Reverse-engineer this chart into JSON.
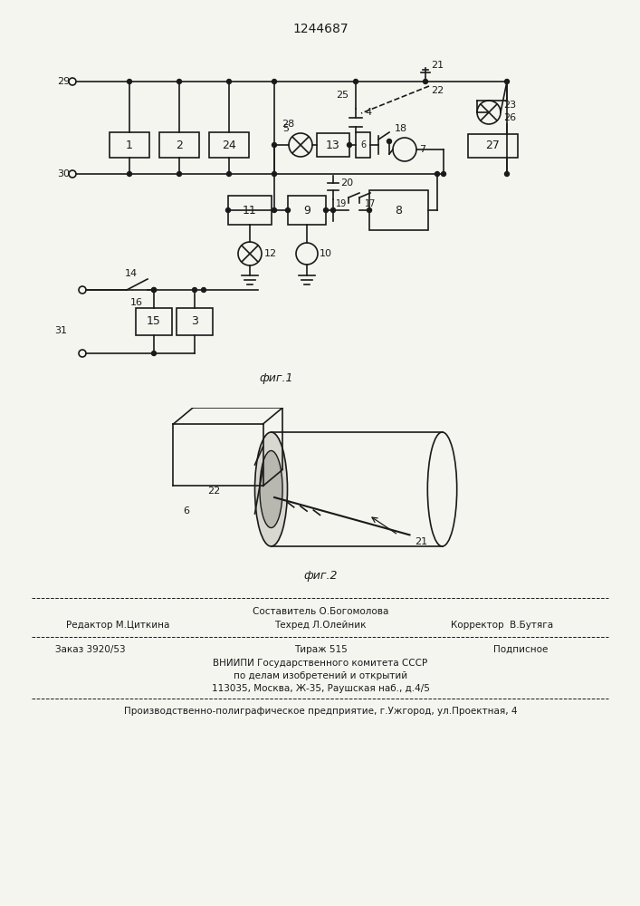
{
  "title": "1244687",
  "fig1_label": "фиг.1",
  "fig2_label": "фиг.2",
  "background_color": "#f5f5f0",
  "line_color": "#1a1a1a",
  "fig_width": 7.07,
  "fig_height": 10.0,
  "footer": {
    "line1_center": "Составитель О.Богомолова",
    "line2_left": "Редактор М.Циткина",
    "line2_center": "Техред Л.Олейник",
    "line2_right": "Корректор  В.Бутяга",
    "line3_left": "Заказ 3920/53",
    "line3_center": "Тираж 515",
    "line3_right": "Подписное",
    "line4": "ВНИИПИ Государственного комитета СССР",
    "line5": "по делам изобретений и открытий",
    "line6": "113035, Москва, Ж-35, Раушская наб., д.4/5",
    "line7": "Производственно-полиграфическое предприятие, г.Ужгород, ул.Проектная, 4"
  }
}
